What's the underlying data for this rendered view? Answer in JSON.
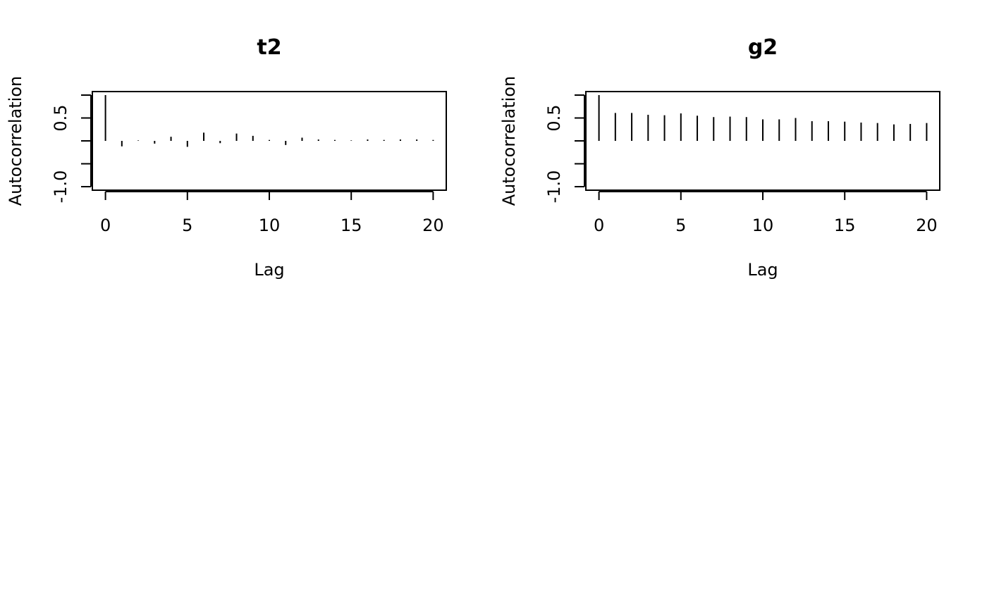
{
  "chart_data": [
    {
      "type": "bar",
      "title": "t2",
      "xlabel": "Lag",
      "ylabel": "Autocorrelation",
      "x": [
        0,
        1,
        2,
        3,
        4,
        5,
        6,
        7,
        8,
        9,
        10,
        11,
        12,
        13,
        14,
        15,
        16,
        17,
        18,
        19,
        20
      ],
      "values": [
        1.0,
        -0.12,
        0.01,
        -0.06,
        0.09,
        -0.13,
        0.18,
        -0.05,
        0.16,
        0.11,
        0.02,
        -0.09,
        0.07,
        0.03,
        0.02,
        0.01,
        0.03,
        0.02,
        0.03,
        0.03,
        0.02
      ],
      "xlim": [
        -0.8,
        20.8
      ],
      "ylim": [
        -1.0,
        1.0
      ],
      "xticks": [
        "0",
        "5",
        "10",
        "15",
        "20"
      ],
      "yticks": [
        -1.0,
        -0.5,
        0.0,
        0.5,
        1.0
      ],
      "ytick_labels": [
        "-1.0",
        "0.5"
      ],
      "grid": false
    },
    {
      "type": "bar",
      "title": "g2",
      "xlabel": "Lag",
      "ylabel": "Autocorrelation",
      "x": [
        0,
        1,
        2,
        3,
        4,
        5,
        6,
        7,
        8,
        9,
        10,
        11,
        12,
        13,
        14,
        15,
        16,
        17,
        18,
        19,
        20
      ],
      "values": [
        1.0,
        0.61,
        0.61,
        0.57,
        0.56,
        0.6,
        0.55,
        0.52,
        0.53,
        0.52,
        0.47,
        0.47,
        0.5,
        0.43,
        0.43,
        0.42,
        0.4,
        0.39,
        0.36,
        0.37,
        0.39
      ],
      "xlim": [
        -0.8,
        20.8
      ],
      "ylim": [
        -1.0,
        1.0
      ],
      "xticks": [
        "0",
        "5",
        "10",
        "15",
        "20"
      ],
      "yticks": [
        -1.0,
        -0.5,
        0.0,
        0.5,
        1.0
      ],
      "ytick_labels": [
        "-1.0",
        "0.5"
      ],
      "grid": false
    }
  ]
}
